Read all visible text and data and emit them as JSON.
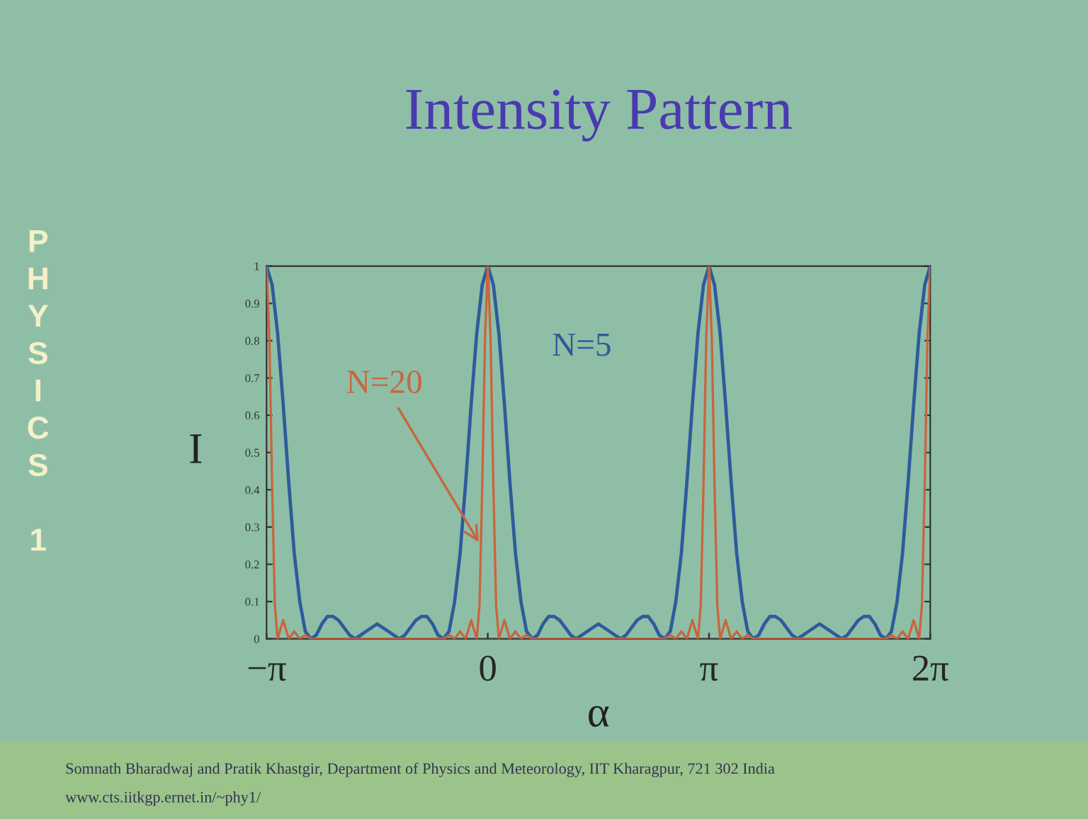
{
  "chart_data": {
    "type": "line",
    "title": "Intensity Pattern",
    "xlabel": "α",
    "ylabel": "I",
    "xlim": [
      -3.142,
      6.2832
    ],
    "xticks": [
      {
        "value": -3.1416,
        "label": "−π"
      },
      0,
      {
        "value": 3.1416,
        "label": "π"
      },
      {
        "value": 6.2832,
        "label": "2π"
      }
    ],
    "ylim": [
      0,
      1
    ],
    "yticks": [
      0,
      0.1,
      0.2,
      0.3,
      0.4,
      0.5,
      0.6,
      0.7,
      0.8,
      0.9,
      1
    ],
    "grid": false,
    "legend": false,
    "marker": "none",
    "line_style": "solid",
    "series": [
      {
        "name": "N=5",
        "color": "#2f5b9c",
        "x": [
          -3.142,
          -3.063,
          -2.985,
          -2.906,
          -2.827,
          -2.749,
          -2.67,
          -2.592,
          -2.513,
          -2.435,
          -2.356,
          -2.278,
          -2.199,
          -2.121,
          -2.042,
          -1.963,
          -1.885,
          -1.806,
          -1.728,
          -1.649,
          -1.571,
          -1.492,
          -1.414,
          -1.335,
          -1.257,
          -1.178,
          -1.1,
          -1.021,
          -0.942,
          -0.864,
          -0.785,
          -0.707,
          -0.628,
          -0.55,
          -0.471,
          -0.393,
          -0.314,
          -0.236,
          -0.157,
          -0.079,
          0,
          0.079,
          0.157,
          0.236,
          0.314,
          0.393,
          0.471,
          0.55,
          0.628,
          0.707,
          0.785,
          0.864,
          0.942,
          1.021,
          1.1,
          1.178,
          1.257,
          1.335,
          1.414,
          1.492,
          1.571,
          1.649,
          1.728,
          1.806,
          1.885,
          1.963,
          2.042,
          2.121,
          2.199,
          2.278,
          2.356,
          2.435,
          2.513,
          2.592,
          2.67,
          2.749,
          2.827,
          2.906,
          2.985,
          3.063,
          3.142,
          3.22,
          3.299,
          3.377,
          3.456,
          3.534,
          3.613,
          3.691,
          3.77,
          3.848,
          3.927,
          4.006,
          4.084,
          4.163,
          4.241,
          4.32,
          4.398,
          4.477,
          4.555,
          4.634,
          4.712,
          4.791,
          4.869,
          4.948,
          5.027,
          5.105,
          5.184,
          5.262,
          5.341,
          5.419,
          5.498,
          5.576,
          5.655,
          5.733,
          5.812,
          5.89,
          5.969,
          6.048,
          6.126,
          6.205,
          6.283
        ],
        "values": [
          1,
          0.95,
          0.82,
          0.63,
          0.42,
          0.23,
          0.1,
          0.02,
          0,
          0.01,
          0.04,
          0.06,
          0.06,
          0.05,
          0.03,
          0.01,
          0,
          0.01,
          0.02,
          0.03,
          0.04,
          0.03,
          0.02,
          0.01,
          0,
          0.01,
          0.03,
          0.05,
          0.06,
          0.06,
          0.04,
          0.01,
          0,
          0.02,
          0.1,
          0.23,
          0.42,
          0.63,
          0.82,
          0.95,
          1,
          0.95,
          0.82,
          0.63,
          0.42,
          0.23,
          0.1,
          0.02,
          0,
          0.01,
          0.04,
          0.06,
          0.06,
          0.05,
          0.03,
          0.01,
          0,
          0.01,
          0.02,
          0.03,
          0.04,
          0.03,
          0.02,
          0.01,
          0,
          0.01,
          0.03,
          0.05,
          0.06,
          0.06,
          0.04,
          0.01,
          0,
          0.02,
          0.1,
          0.23,
          0.42,
          0.63,
          0.82,
          0.95,
          1,
          0.95,
          0.82,
          0.63,
          0.42,
          0.23,
          0.1,
          0.02,
          0,
          0.01,
          0.04,
          0.06,
          0.06,
          0.05,
          0.03,
          0.01,
          0,
          0.01,
          0.02,
          0.03,
          0.04,
          0.03,
          0.02,
          0.01,
          0,
          0.01,
          0.03,
          0.05,
          0.06,
          0.06,
          0.04,
          0.01,
          0,
          0.02,
          0.1,
          0.23,
          0.42,
          0.63,
          0.82,
          0.95,
          1
        ]
      },
      {
        "name": "N=20",
        "color": "#c8653e",
        "x": [
          -3.142,
          -3.102,
          -3.063,
          -3.024,
          -2.985,
          -2.906,
          -2.827,
          -2.749,
          -2.67,
          -2.592,
          -2.513,
          -1.571,
          -0.628,
          -0.55,
          -0.471,
          -0.393,
          -0.314,
          -0.236,
          -0.157,
          -0.118,
          -0.079,
          -0.039,
          0,
          0.039,
          0.079,
          0.118,
          0.157,
          0.236,
          0.314,
          0.393,
          0.471,
          0.55,
          0.628,
          1.571,
          2.513,
          2.592,
          2.67,
          2.749,
          2.827,
          2.906,
          2.985,
          3.024,
          3.063,
          3.102,
          3.142,
          3.181,
          3.22,
          3.259,
          3.299,
          3.377,
          3.456,
          3.534,
          3.613,
          3.691,
          3.77,
          4.712,
          5.655,
          5.733,
          5.812,
          5.89,
          5.969,
          6.048,
          6.126,
          6.165,
          6.205,
          6.244,
          6.283
        ],
        "values": [
          1,
          0.81,
          0.41,
          0.09,
          0,
          0.05,
          0,
          0.02,
          0,
          0.01,
          0,
          0,
          0,
          0.01,
          0,
          0.02,
          0,
          0.05,
          0,
          0.09,
          0.41,
          0.81,
          1,
          0.81,
          0.41,
          0.09,
          0,
          0.05,
          0,
          0.02,
          0,
          0.01,
          0,
          0,
          0,
          0.01,
          0,
          0.02,
          0,
          0.05,
          0,
          0.09,
          0.41,
          0.81,
          1,
          0.81,
          0.41,
          0.09,
          0,
          0.05,
          0,
          0.02,
          0,
          0.01,
          0,
          0,
          0,
          0.01,
          0,
          0.02,
          0,
          0.05,
          0,
          0.09,
          0.41,
          0.81,
          1
        ]
      }
    ],
    "annotations": [
      "PHYSICS 1",
      "Somnath Bharadwaj and Pratik Khastgir, Department of Physics and Meteorology, IIT Kharagpur, 721 302 India",
      "www.cts.iitkgp.ernet.in/~phy1/"
    ]
  }
}
